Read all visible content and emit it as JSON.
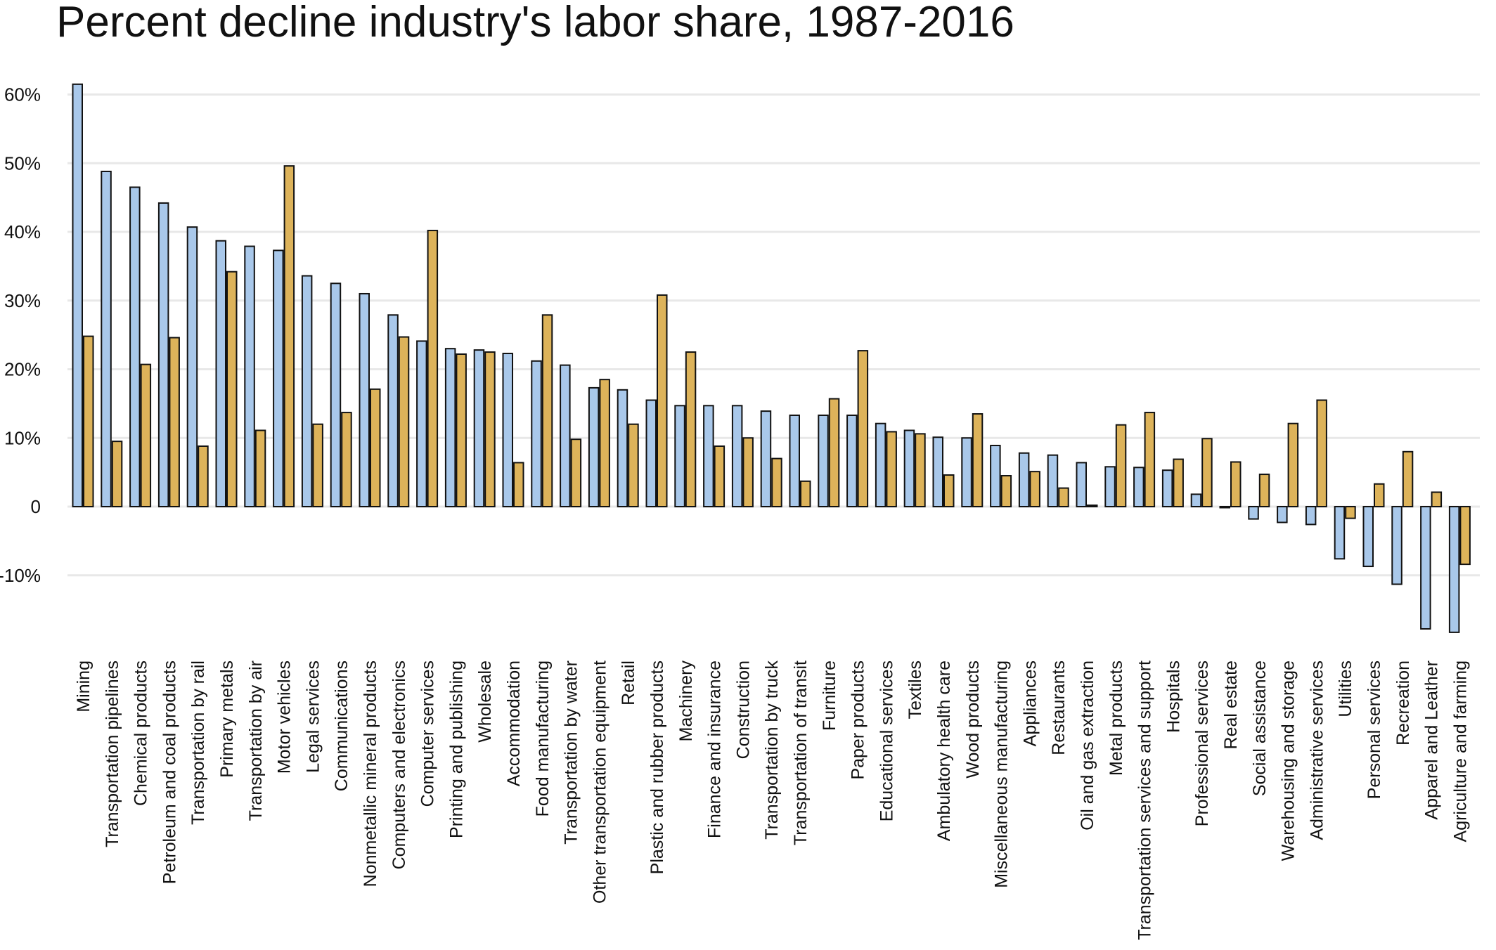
{
  "colors": {
    "series1": "#a9c8ea",
    "series2": "#ddb35a",
    "gridline": "#e8e8e8",
    "stroke": "#111111"
  },
  "chart_data": {
    "type": "bar",
    "title": "Percent decline industry's labor share, 1987-2016",
    "xlabel": "",
    "ylabel": "",
    "ylim": [
      -20,
      62
    ],
    "yticks": [
      60,
      50,
      40,
      30,
      20,
      10,
      0,
      -10
    ],
    "ytick_labels": [
      "60%",
      "50%",
      "40%",
      "30%",
      "20%",
      "10%",
      "0",
      "-10%"
    ],
    "grid": "horizontal",
    "categories": [
      "Mining",
      "Transportation pipelines",
      "Chemical products",
      "Petroleum and coal products",
      "Transportation by rail",
      "Primary metals",
      "Transportation by air",
      "Motor vehicles",
      "Legal services",
      "Communications",
      "Nonmetallic mineral products",
      "Computers and electronics",
      "Computer services",
      "Printing and publishing",
      "Wholesale",
      "Accommodation",
      "Food manufacturing",
      "Transportation by water",
      "Other transportation equipment",
      "Retail",
      "Plastic and rubber products",
      "Machinery",
      "Finance and insurance",
      "Construction",
      "Transportation by truck",
      "Transportation of transit",
      "Furniture",
      "Paper products",
      "Educational services",
      "Textiles",
      "Ambulatory health care",
      "Wood products",
      "Miscellaneous manufacturing",
      "Appliances",
      "Restaurants",
      "Oil and gas extraction",
      "Metal products",
      "Transportation services and support",
      "Hospitals",
      "Professional services",
      "Real estate",
      "Social assistance",
      "Warehousing and storage",
      "Administrative services",
      "Utilities",
      "Personal services",
      "Recreation",
      "Apparel and Leather",
      "Agriculture and farming"
    ],
    "series": [
      {
        "values": [
          61.5,
          48.8,
          46.5,
          44.2,
          40.7,
          38.7,
          37.9,
          37.3,
          33.6,
          32.5,
          31.0,
          27.9,
          24.1,
          23.0,
          22.8,
          22.3,
          21.2,
          20.6,
          17.3,
          17.0,
          15.5,
          14.7,
          14.7,
          14.7,
          13.9,
          13.3,
          13.3,
          13.3,
          12.1,
          11.1,
          10.1,
          10.0,
          8.9,
          7.8,
          7.5,
          6.4,
          5.8,
          5.7,
          5.3,
          1.8,
          0,
          -1.8,
          -2.3,
          -2.6,
          -7.6,
          -8.7,
          -11.3,
          -17.8,
          -18.3
        ]
      },
      {
        "values": [
          24.8,
          9.5,
          20.7,
          24.6,
          8.8,
          34.2,
          11.1,
          49.6,
          12.0,
          13.7,
          17.1,
          24.7,
          40.2,
          22.2,
          22.5,
          6.4,
          27.9,
          9.8,
          18.5,
          12.0,
          30.8,
          22.5,
          8.8,
          10.0,
          7.0,
          3.7,
          15.7,
          22.7,
          10.9,
          10.6,
          4.6,
          13.5,
          4.5,
          5.1,
          2.7,
          0.2,
          11.9,
          13.7,
          6.9,
          9.9,
          6.5,
          4.7,
          12.1,
          15.5,
          -1.7,
          3.3,
          8.0,
          2.1,
          -8.4
        ]
      }
    ]
  }
}
